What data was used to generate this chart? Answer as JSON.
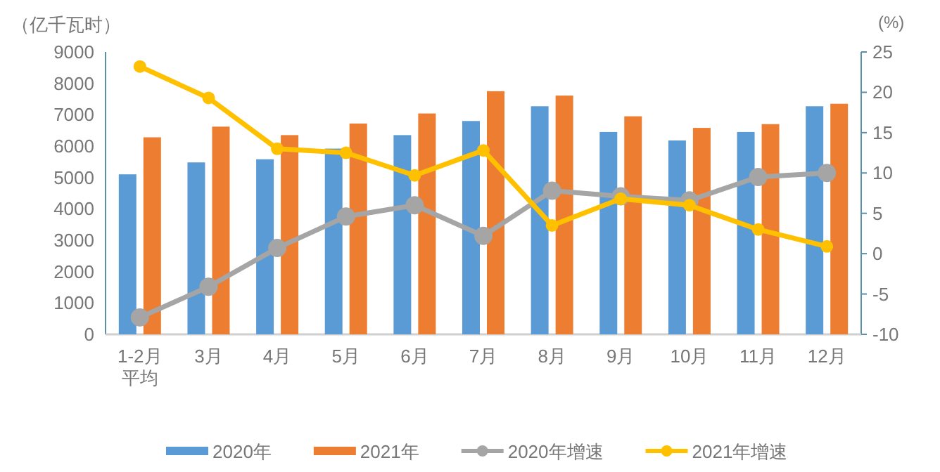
{
  "chart_data": {
    "type": "bar",
    "ylabel": "（亿千瓦时）",
    "y2label": "(%)",
    "categories": [
      "1-2月平均",
      "3月",
      "4月",
      "5月",
      "6月",
      "7月",
      "8月",
      "9月",
      "10月",
      "11月",
      "12月"
    ],
    "series": [
      {
        "name": "2020年",
        "color": "#5b9bd5",
        "values": [
          5100,
          5480,
          5580,
          5920,
          6350,
          6800,
          7270,
          6450,
          6180,
          6450,
          7270
        ]
      },
      {
        "name": "2021年",
        "color": "#ed7d31",
        "values": [
          6280,
          6620,
          6350,
          6720,
          7040,
          7750,
          7610,
          6950,
          6580,
          6700,
          7350
        ]
      },
      {
        "name": "2020年增速",
        "type": "line",
        "axis": "y2",
        "marker": "circle",
        "color": "#a5a5a5",
        "values": [
          -7.9,
          -4.1,
          0.7,
          4.6,
          6.0,
          2.2,
          7.8,
          7.1,
          6.6,
          9.5,
          10.0
        ]
      },
      {
        "name": "2021年增速",
        "type": "line",
        "axis": "y2",
        "marker": "circle",
        "color": "#ffc000",
        "values": [
          23.2,
          19.3,
          13.0,
          12.5,
          9.7,
          12.8,
          3.5,
          6.8,
          6.0,
          3.0,
          0.9
        ]
      }
    ],
    "ylim": [
      0,
      9000
    ],
    "yticks": [
      0,
      1000,
      2000,
      3000,
      4000,
      5000,
      6000,
      7000,
      8000,
      9000
    ],
    "y2lim": [
      -10,
      25
    ],
    "y2ticks": [
      -10,
      -5,
      0,
      5,
      10,
      15,
      20,
      25
    ],
    "grid": false,
    "legend": "bottom"
  }
}
